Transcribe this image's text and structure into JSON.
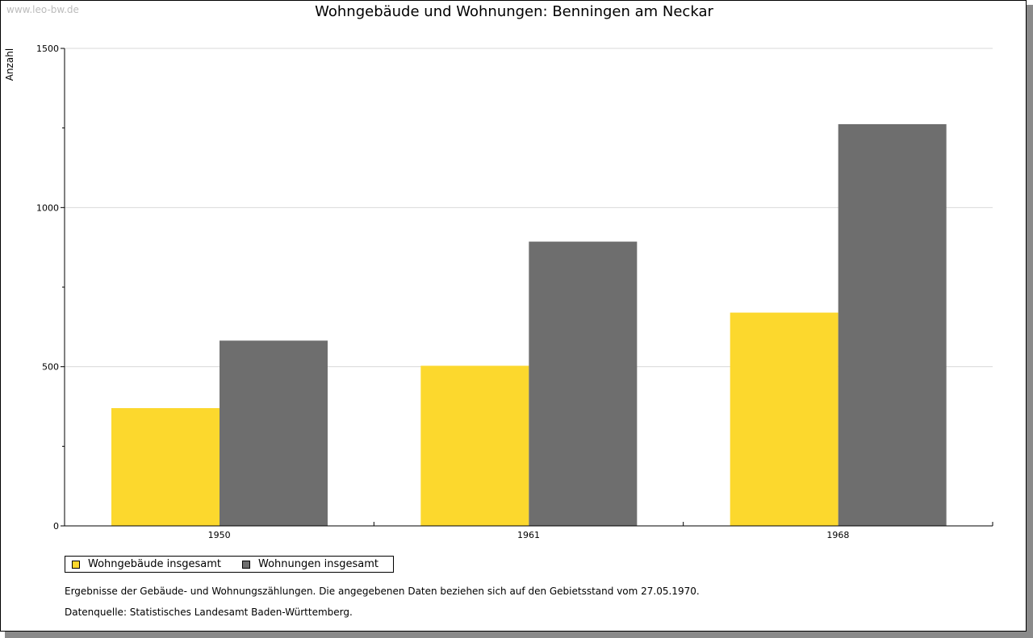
{
  "watermark": "www.leo-bw.de",
  "chart_data": {
    "type": "bar",
    "title": "Wohngebäude und Wohnungen: Benningen am Neckar",
    "ylabel": "Anzahl",
    "xlabel": "",
    "categories": [
      "1950",
      "1961",
      "1968"
    ],
    "ylim": [
      0,
      1500
    ],
    "yticks": [
      "0",
      "500",
      "1000",
      "1500"
    ],
    "grid": true,
    "legend_position": "bottom-left",
    "series": [
      {
        "name": "Wohngebäude insgesamt",
        "values": [
          370,
          503,
          670
        ],
        "color": "#fcd82d"
      },
      {
        "name": "Wohnungen insgesamt",
        "values": [
          582,
          893,
          1262
        ],
        "color": "#6e6e6e"
      }
    ]
  },
  "notes": {
    "line1": "Ergebnisse der Gebäude- und Wohnungszählungen. Die angegebenen Daten beziehen sich auf den Gebietsstand vom 27.05.1970.",
    "line2": "Datenquelle: Statistisches Landesamt Baden-Württemberg."
  }
}
